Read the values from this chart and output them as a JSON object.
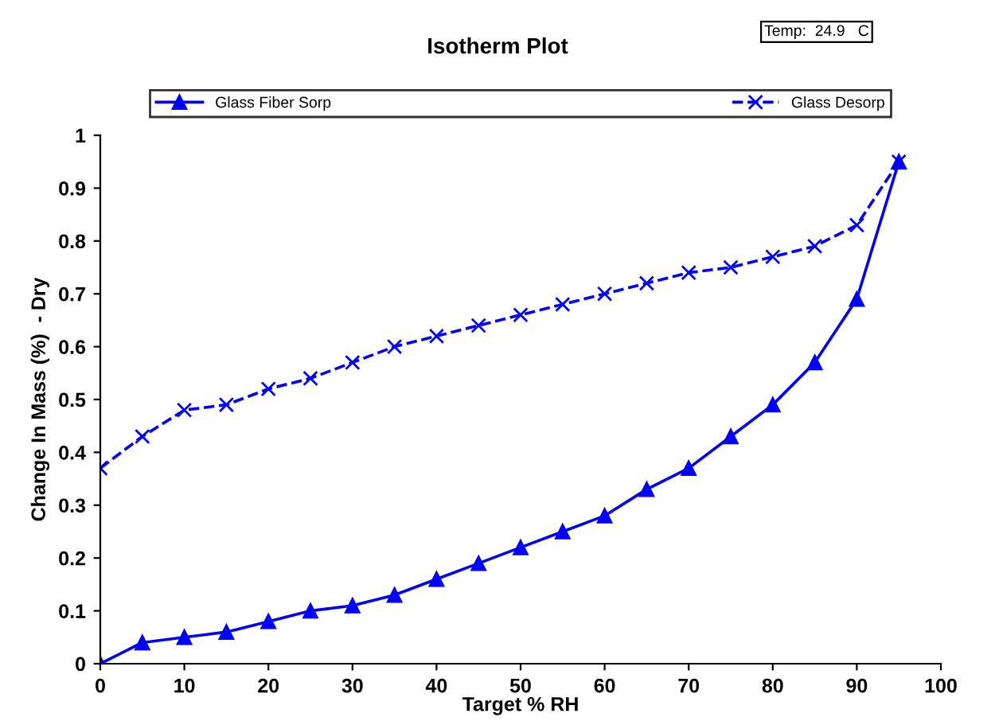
{
  "chart_data": {
    "type": "line",
    "title": "Isotherm Plot",
    "xlabel": "Target % RH",
    "ylabel": "Change In Mass (%)  - Dry",
    "annotations": [
      "Temp:  24.9   C"
    ],
    "x": [
      0,
      5,
      10,
      15,
      20,
      25,
      30,
      35,
      40,
      45,
      50,
      55,
      60,
      65,
      70,
      75,
      80,
      85,
      90,
      95
    ],
    "series": [
      {
        "name": "Glass Fiber Sorp",
        "color": "#0000ff",
        "marker": "triangle",
        "line_style": "solid",
        "values": [
          0,
          0.04,
          0.05,
          0.06,
          0.08,
          0.1,
          0.11,
          0.13,
          0.16,
          0.19,
          0.22,
          0.25,
          0.28,
          0.33,
          0.37,
          0.43,
          0.49,
          0.57,
          0.69,
          0.95
        ]
      },
      {
        "name": "Glass Desorp",
        "color": "#0000ff",
        "marker": "cross",
        "line_style": "dashed",
        "values": [
          0.37,
          0.43,
          0.48,
          0.49,
          0.52,
          0.54,
          0.57,
          0.6,
          0.62,
          0.64,
          0.66,
          0.68,
          0.7,
          0.72,
          0.74,
          0.75,
          0.77,
          0.79,
          0.83,
          0.95
        ]
      }
    ],
    "xlim": [
      0,
      100
    ],
    "xticks": [
      0,
      10,
      20,
      30,
      40,
      50,
      60,
      70,
      80,
      90,
      100
    ],
    "ylim": [
      0,
      1
    ],
    "yticks": [
      0,
      0.1,
      0.2,
      0.3,
      0.4,
      0.5,
      0.6,
      0.7,
      0.8,
      0.9,
      1
    ],
    "grid": false,
    "legend": "top"
  }
}
